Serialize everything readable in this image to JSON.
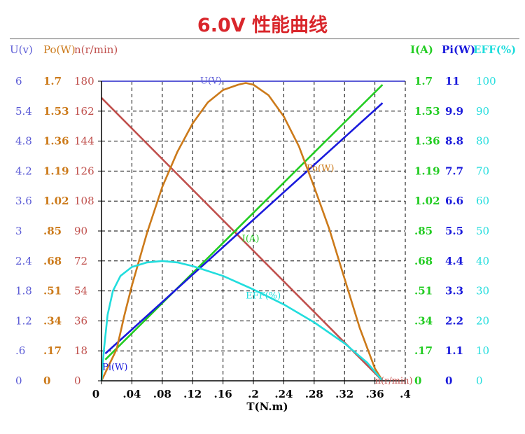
{
  "title": "6.0V 性能曲线",
  "colors": {
    "U": "#5b5bd6",
    "Po": "#cc7a1a",
    "n": "#c0504d",
    "I": "#22cc22",
    "Pi": "#1a1adc",
    "EFF": "#22dddd"
  },
  "chart_data": {
    "type": "line",
    "xlabel": "T(N.m)",
    "x_ticks": [
      "0",
      ".04",
      ".08",
      ".12",
      ".16",
      ".2",
      ".24",
      ".28",
      ".32",
      ".36",
      ".4"
    ],
    "xlim": [
      0,
      0.4
    ],
    "left_axes": [
      {
        "key": "U",
        "header": "U(v)",
        "ticks": [
          "0",
          ".6",
          "1.2",
          "1.8",
          "2.4",
          "3",
          "3.6",
          "4.2",
          "4.8",
          "5.4",
          "6"
        ],
        "range": [
          0,
          6
        ]
      },
      {
        "key": "Po",
        "header": "Po(W)",
        "ticks": [
          "0",
          ".17",
          ".34",
          ".51",
          ".68",
          ".85",
          "1.02",
          "1.19",
          "1.36",
          "1.53",
          "1.7"
        ],
        "range": [
          0,
          1.7
        ]
      },
      {
        "key": "n",
        "header": "n(r/min)",
        "ticks": [
          "0",
          "18",
          "36",
          "54",
          "72",
          "90",
          "108",
          "126",
          "144",
          "162",
          "180"
        ],
        "range": [
          0,
          180
        ]
      }
    ],
    "right_axes": [
      {
        "key": "I",
        "header": "I(A)",
        "ticks": [
          "0",
          ".17",
          ".34",
          ".51",
          ".68",
          ".85",
          "1.02",
          "1.19",
          "1.36",
          "1.53",
          "1.7"
        ],
        "range": [
          0,
          1.7
        ]
      },
      {
        "key": "Pi",
        "header": "Pi(W)",
        "ticks": [
          "0",
          "1.1",
          "2.2",
          "3.3",
          "4.4",
          "5.5",
          "6.6",
          "7.7",
          "8.8",
          "9.9",
          "11"
        ],
        "range": [
          0,
          11
        ]
      },
      {
        "key": "EFF",
        "header": "EFF(%)",
        "ticks": [
          "0",
          "10",
          "20",
          "30",
          "40",
          "50",
          "60",
          "70",
          "80",
          "90",
          "100"
        ],
        "range": [
          0,
          100
        ]
      }
    ],
    "series": [
      {
        "key": "U",
        "name": "U(V)",
        "points": [
          [
            0,
            6
          ],
          [
            0.4,
            6
          ]
        ]
      },
      {
        "key": "n",
        "name": "n(r/min)",
        "points": [
          [
            0,
            170
          ],
          [
            0.37,
            0
          ]
        ]
      },
      {
        "key": "I",
        "name": "I(A)",
        "points": [
          [
            0.005,
            0.12
          ],
          [
            0.37,
            1.68
          ]
        ]
      },
      {
        "key": "Pi",
        "name": "Pi(W)",
        "points": [
          [
            0.005,
            1.0
          ],
          [
            0.37,
            10.2
          ]
        ]
      },
      {
        "key": "Po",
        "name": "Po(W)",
        "points": [
          [
            0,
            0
          ],
          [
            0.01,
            0.09
          ],
          [
            0.02,
            0.18
          ],
          [
            0.03,
            0.37
          ],
          [
            0.04,
            0.54
          ],
          [
            0.06,
            0.84
          ],
          [
            0.08,
            1.1
          ],
          [
            0.1,
            1.3
          ],
          [
            0.12,
            1.46
          ],
          [
            0.14,
            1.58
          ],
          [
            0.16,
            1.65
          ],
          [
            0.18,
            1.68
          ],
          [
            0.19,
            1.69
          ],
          [
            0.2,
            1.68
          ],
          [
            0.22,
            1.62
          ],
          [
            0.24,
            1.5
          ],
          [
            0.26,
            1.33
          ],
          [
            0.28,
            1.1
          ],
          [
            0.3,
            0.86
          ],
          [
            0.32,
            0.58
          ],
          [
            0.34,
            0.3
          ],
          [
            0.36,
            0.07
          ],
          [
            0.37,
            0
          ]
        ]
      },
      {
        "key": "EFF",
        "name": "EFF(%)",
        "points": [
          [
            0,
            0
          ],
          [
            0.003,
            10
          ],
          [
            0.008,
            22
          ],
          [
            0.015,
            30
          ],
          [
            0.025,
            35
          ],
          [
            0.04,
            38
          ],
          [
            0.06,
            39.5
          ],
          [
            0.08,
            40
          ],
          [
            0.1,
            39.5
          ],
          [
            0.12,
            38.3
          ],
          [
            0.16,
            35
          ],
          [
            0.2,
            30.5
          ],
          [
            0.24,
            25.5
          ],
          [
            0.28,
            19.5
          ],
          [
            0.32,
            12.5
          ],
          [
            0.35,
            6
          ],
          [
            0.37,
            0
          ]
        ]
      }
    ],
    "curve_labels": [
      {
        "key": "U",
        "text": "U(V)",
        "x": 0.13,
        "y": 5.95
      },
      {
        "key": "Po",
        "text": "Po(W)",
        "x": 0.27,
        "y": 1.19
      },
      {
        "key": "I",
        "text": "I(A)",
        "x": 0.185,
        "y": 0.79
      },
      {
        "key": "EFF",
        "text": "EFF(%)",
        "x": 0.19,
        "y": 27.5
      },
      {
        "key": "Pi",
        "text": "Pi(W)",
        "x": 0.001,
        "y": 0.4
      },
      {
        "key": "n",
        "text": "n(r/min)",
        "x": 0.36,
        "y": -0.5
      }
    ],
    "grid": true
  }
}
